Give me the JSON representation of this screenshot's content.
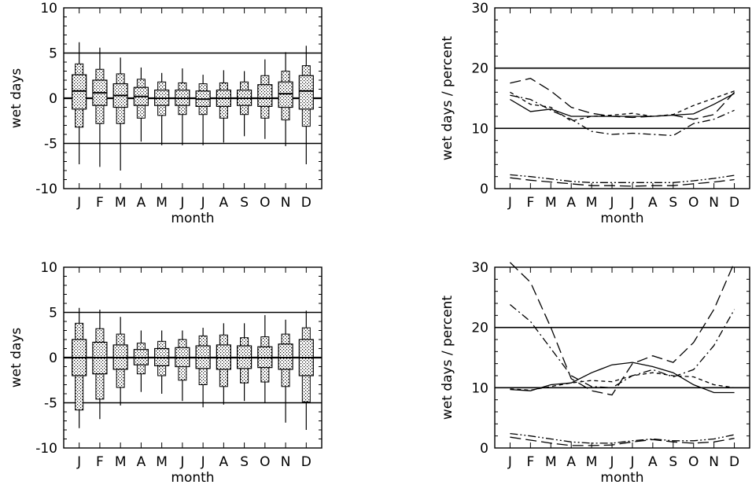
{
  "chart_data": [
    {
      "type": "box",
      "xlabel": "month",
      "ylabel": "wet days",
      "ylim": [
        -10,
        10
      ],
      "yticks": [
        -10,
        -5,
        0,
        5,
        10
      ],
      "categories": [
        "J",
        "F",
        "M",
        "A",
        "M",
        "J",
        "J",
        "A",
        "S",
        "O",
        "N",
        "D"
      ],
      "reference_lines": [
        5,
        0,
        -5
      ],
      "boxes": [
        {
          "whisker_low": -7.3,
          "outer_low": -3.2,
          "inner_low": -1.2,
          "median": 0.8,
          "inner_high": 2.6,
          "outer_high": 3.8,
          "whisker_high": 6.2
        },
        {
          "whisker_low": -7.6,
          "outer_low": -2.8,
          "inner_low": -0.8,
          "median": 0.6,
          "inner_high": 2.0,
          "outer_high": 3.2,
          "whisker_high": 5.6
        },
        {
          "whisker_low": -8.0,
          "outer_low": -2.8,
          "inner_low": -1.0,
          "median": 0.3,
          "inner_high": 1.6,
          "outer_high": 2.7,
          "whisker_high": 4.5
        },
        {
          "whisker_low": -4.8,
          "outer_low": -2.2,
          "inner_low": -0.8,
          "median": 0.2,
          "inner_high": 1.2,
          "outer_high": 2.1,
          "whisker_high": 3.4
        },
        {
          "whisker_low": -5.2,
          "outer_low": -1.9,
          "inner_low": -0.8,
          "median": 0.0,
          "inner_high": 0.9,
          "outer_high": 1.8,
          "whisker_high": 2.8
        },
        {
          "whisker_low": -5.2,
          "outer_low": -1.8,
          "inner_low": -0.8,
          "median": 0.0,
          "inner_high": 0.9,
          "outer_high": 1.7,
          "whisker_high": 3.3
        },
        {
          "whisker_low": -5.2,
          "outer_low": -1.8,
          "inner_low": -0.9,
          "median": -0.1,
          "inner_high": 0.8,
          "outer_high": 1.6,
          "whisker_high": 2.6
        },
        {
          "whisker_low": -4.9,
          "outer_low": -2.2,
          "inner_low": -0.9,
          "median": 0.0,
          "inner_high": 0.9,
          "outer_high": 1.7,
          "whisker_high": 3.1
        },
        {
          "whisker_low": -4.2,
          "outer_low": -1.8,
          "inner_low": -0.8,
          "median": 0.0,
          "inner_high": 0.9,
          "outer_high": 1.8,
          "whisker_high": 3.0
        },
        {
          "whisker_low": -4.5,
          "outer_low": -2.2,
          "inner_low": -0.9,
          "median": 0.0,
          "inner_high": 1.5,
          "outer_high": 2.5,
          "whisker_high": 4.3
        },
        {
          "whisker_low": -5.3,
          "outer_low": -2.4,
          "inner_low": -1.0,
          "median": 0.5,
          "inner_high": 1.8,
          "outer_high": 3.0,
          "whisker_high": 5.1
        },
        {
          "whisker_low": -7.3,
          "outer_low": -3.1,
          "inner_low": -1.2,
          "median": 0.8,
          "inner_high": 2.5,
          "outer_high": 3.6,
          "whisker_high": 5.8
        }
      ]
    },
    {
      "type": "line",
      "xlabel": "month",
      "ylabel": "wet days / percent",
      "ylim": [
        0,
        30
      ],
      "yticks": [
        0,
        10,
        20,
        30
      ],
      "categories": [
        "J",
        "F",
        "M",
        "A",
        "M",
        "J",
        "J",
        "A",
        "S",
        "O",
        "N",
        "D"
      ],
      "reference_lines": [
        20,
        10
      ],
      "series": [
        {
          "style": "solid",
          "values": [
            14.8,
            12.8,
            13.2,
            12.0,
            12.0,
            12.0,
            12.0,
            12.0,
            12.2,
            12.4,
            14.0,
            15.8
          ]
        },
        {
          "style": "longdash",
          "values": [
            17.5,
            18.3,
            16.2,
            13.5,
            12.5,
            12.0,
            11.8,
            12.0,
            12.2,
            11.5,
            12.3,
            16.0
          ]
        },
        {
          "style": "dashdot",
          "values": [
            15.5,
            14.8,
            13.0,
            11.5,
            9.5,
            9.0,
            9.2,
            9.0,
            8.8,
            10.8,
            11.5,
            13.0
          ]
        },
        {
          "style": "shortdash",
          "values": [
            16.0,
            14.0,
            13.5,
            11.2,
            12.0,
            12.2,
            12.5,
            12.0,
            12.3,
            13.8,
            15.0,
            16.2
          ]
        },
        {
          "style": "longdash",
          "values": [
            1.8,
            1.4,
            1.1,
            0.8,
            0.5,
            0.5,
            0.4,
            0.5,
            0.5,
            0.8,
            1.1,
            1.5
          ]
        },
        {
          "style": "dashdotdot",
          "values": [
            2.3,
            2.0,
            1.6,
            1.2,
            1.0,
            1.0,
            1.0,
            1.0,
            1.0,
            1.3,
            1.7,
            2.2
          ]
        }
      ]
    },
    {
      "type": "box",
      "xlabel": "month",
      "ylabel": "wet days",
      "ylim": [
        -10,
        10
      ],
      "yticks": [
        -10,
        -5,
        0,
        5,
        10
      ],
      "categories": [
        "J",
        "F",
        "M",
        "A",
        "M",
        "J",
        "J",
        "A",
        "S",
        "O",
        "N",
        "D"
      ],
      "reference_lines": [
        5,
        0,
        -5
      ],
      "boxes": [
        {
          "whisker_low": -7.8,
          "outer_low": -5.8,
          "inner_low": -2.0,
          "median": 0.0,
          "inner_high": 2.0,
          "outer_high": 3.8,
          "whisker_high": 5.5
        },
        {
          "whisker_low": -6.8,
          "outer_low": -4.6,
          "inner_low": -1.8,
          "median": 0.0,
          "inner_high": 1.7,
          "outer_high": 3.2,
          "whisker_high": 5.3
        },
        {
          "whisker_low": -5.3,
          "outer_low": -3.3,
          "inner_low": -1.3,
          "median": 0.0,
          "inner_high": 1.4,
          "outer_high": 2.6,
          "whisker_high": 4.5
        },
        {
          "whisker_low": -3.8,
          "outer_low": -1.8,
          "inner_low": -0.8,
          "median": 0.0,
          "inner_high": 0.9,
          "outer_high": 1.6,
          "whisker_high": 3.0
        },
        {
          "whisker_low": -4.0,
          "outer_low": -2.0,
          "inner_low": -0.9,
          "median": 0.0,
          "inner_high": 1.0,
          "outer_high": 1.8,
          "whisker_high": 3.0
        },
        {
          "whisker_low": -4.8,
          "outer_low": -2.5,
          "inner_low": -1.0,
          "median": 0.0,
          "inner_high": 1.1,
          "outer_high": 2.0,
          "whisker_high": 3.0
        },
        {
          "whisker_low": -5.5,
          "outer_low": -3.0,
          "inner_low": -1.2,
          "median": 0.0,
          "inner_high": 1.3,
          "outer_high": 2.4,
          "whisker_high": 3.3
        },
        {
          "whisker_low": -5.2,
          "outer_low": -3.2,
          "inner_low": -1.3,
          "median": 0.0,
          "inner_high": 1.4,
          "outer_high": 2.5,
          "whisker_high": 3.8
        },
        {
          "whisker_low": -4.8,
          "outer_low": -2.8,
          "inner_low": -1.2,
          "median": 0.0,
          "inner_high": 1.3,
          "outer_high": 2.2,
          "whisker_high": 3.8
        },
        {
          "whisker_low": -5.0,
          "outer_low": -2.7,
          "inner_low": -1.1,
          "median": 0.0,
          "inner_high": 1.2,
          "outer_high": 2.3,
          "whisker_high": 4.7
        },
        {
          "whisker_low": -7.2,
          "outer_low": -3.2,
          "inner_low": -1.3,
          "median": 0.0,
          "inner_high": 1.5,
          "outer_high": 2.6,
          "whisker_high": 4.2
        },
        {
          "whisker_low": -8.0,
          "outer_low": -4.9,
          "inner_low": -2.0,
          "median": 0.0,
          "inner_high": 2.0,
          "outer_high": 3.3,
          "whisker_high": 5.2
        }
      ]
    },
    {
      "type": "line",
      "xlabel": "month",
      "ylabel": "wet days / percent",
      "ylim": [
        0,
        30
      ],
      "yticks": [
        0,
        10,
        20,
        30
      ],
      "categories": [
        "J",
        "F",
        "M",
        "A",
        "M",
        "J",
        "J",
        "A",
        "S",
        "O",
        "N",
        "D"
      ],
      "reference_lines": [
        20,
        10
      ],
      "series": [
        {
          "style": "solid",
          "values": [
            9.7,
            9.5,
            10.5,
            10.8,
            12.5,
            13.8,
            14.2,
            13.5,
            12.5,
            10.5,
            9.2,
            9.2
          ]
        },
        {
          "style": "longdash",
          "values": [
            30.8,
            27.5,
            20.0,
            11.5,
            9.5,
            8.8,
            14.0,
            15.3,
            14.2,
            17.5,
            23.0,
            30.8
          ]
        },
        {
          "style": "dashdot",
          "values": [
            23.8,
            21.0,
            16.5,
            12.0,
            10.2,
            10.0,
            12.0,
            13.0,
            11.8,
            13.0,
            17.0,
            23.0
          ]
        },
        {
          "style": "shortdash",
          "values": [
            9.8,
            9.6,
            10.2,
            10.8,
            11.2,
            11.0,
            12.0,
            12.5,
            12.0,
            11.8,
            10.5,
            10.0
          ]
        },
        {
          "style": "longdash",
          "values": [
            1.8,
            1.3,
            0.8,
            0.4,
            0.4,
            0.5,
            1.0,
            1.4,
            1.0,
            0.8,
            1.0,
            1.6
          ]
        },
        {
          "style": "dashdotdot",
          "values": [
            2.4,
            2.0,
            1.5,
            1.0,
            0.8,
            0.8,
            1.2,
            1.5,
            1.2,
            1.2,
            1.5,
            2.2
          ]
        }
      ]
    }
  ]
}
